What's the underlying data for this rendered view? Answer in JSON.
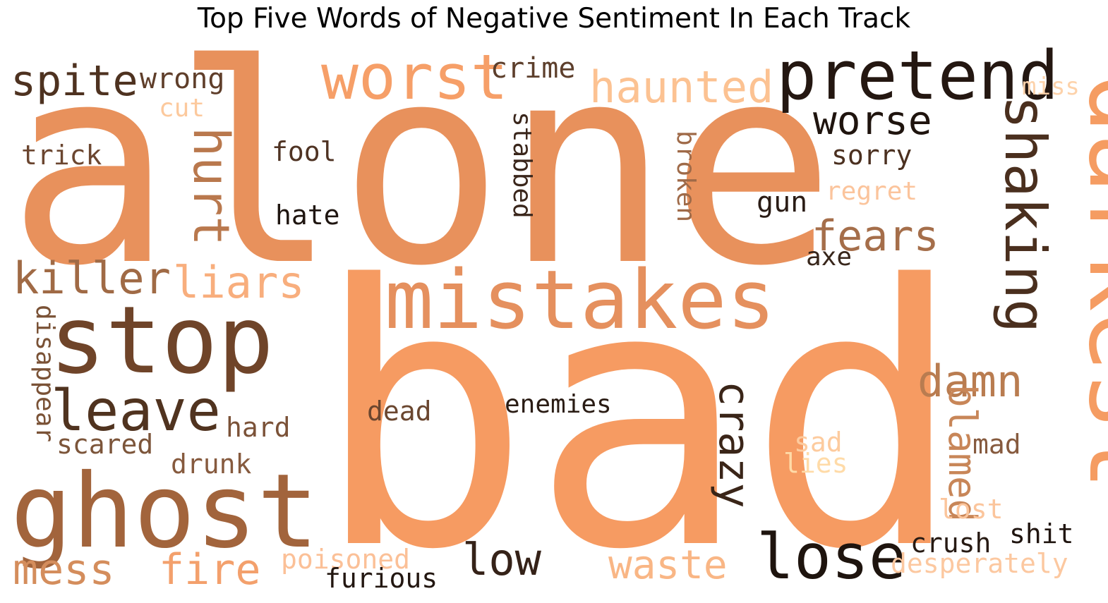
{
  "chart_data": {
    "type": "wordcloud",
    "title": "Top Five Words of Negative Sentiment In Each Track",
    "words": [
      {
        "text": "alone",
        "color": "#E8915C"
      },
      {
        "text": "bad",
        "color": "#F69B62"
      },
      {
        "text": "mistakes",
        "color": "#E5905E"
      },
      {
        "text": "stop",
        "color": "#6F4429"
      },
      {
        "text": "ghost",
        "color": "#A2643C"
      },
      {
        "text": "pretend",
        "color": "#241711"
      },
      {
        "text": "darkest",
        "color": "#F59C62"
      },
      {
        "text": "worst",
        "color": "#F69F68"
      },
      {
        "text": "lose",
        "color": "#1E140E"
      },
      {
        "text": "leave",
        "color": "#50331F"
      },
      {
        "text": "shaking",
        "color": "#4A2F1E"
      },
      {
        "text": "killer",
        "color": "#A06A45"
      },
      {
        "text": "liars",
        "color": "#F8AE7D"
      },
      {
        "text": "hurt",
        "color": "#B9784D"
      },
      {
        "text": "fears",
        "color": "#A56E4A"
      },
      {
        "text": "haunted",
        "color": "#FCC292"
      },
      {
        "text": "spite",
        "color": "#4E3220"
      },
      {
        "text": "worse",
        "color": "#1F140E"
      },
      {
        "text": "damn",
        "color": "#B97C50"
      },
      {
        "text": "crazy",
        "color": "#3A2518"
      },
      {
        "text": "fire",
        "color": "#F3A06C"
      },
      {
        "text": "mess",
        "color": "#D48D5C"
      },
      {
        "text": "waste",
        "color": "#F9B685"
      },
      {
        "text": "low",
        "color": "#352218"
      },
      {
        "text": "blamed",
        "color": "#C88658"
      },
      {
        "text": "desperately",
        "color": "#FCC8A0"
      },
      {
        "text": "wrong",
        "color": "#5F3E2A"
      },
      {
        "text": "crime",
        "color": "#5D3F2C"
      },
      {
        "text": "trick",
        "color": "#6B4630"
      },
      {
        "text": "fool",
        "color": "#4F3323"
      },
      {
        "text": "hate",
        "color": "#1F1510"
      },
      {
        "text": "sorry",
        "color": "#4B3020"
      },
      {
        "text": "gun",
        "color": "#2A1C15"
      },
      {
        "text": "regret",
        "color": "#FBC49C"
      },
      {
        "text": "axe",
        "color": "#38261B"
      },
      {
        "text": "stabbed",
        "color": "#3A261B"
      },
      {
        "text": "broken",
        "color": "#9F6A48"
      },
      {
        "text": "disappear",
        "color": "#7A5236"
      },
      {
        "text": "enemies",
        "color": "#2A1C14"
      },
      {
        "text": "dead",
        "color": "#6A462F"
      },
      {
        "text": "hard",
        "color": "#7B5238"
      },
      {
        "text": "scared",
        "color": "#7C553A"
      },
      {
        "text": "drunk",
        "color": "#865A3E"
      },
      {
        "text": "poisoned",
        "color": "#FBC097"
      },
      {
        "text": "furious",
        "color": "#231711"
      },
      {
        "text": "crush",
        "color": "#271A13"
      },
      {
        "text": "shit",
        "color": "#201510"
      },
      {
        "text": "lost",
        "color": "#FBC59C"
      },
      {
        "text": "mad",
        "color": "#865A3E"
      },
      {
        "text": "sad",
        "color": "#FDCB9E"
      },
      {
        "text": "lies",
        "color": "#FFDBA8"
      },
      {
        "text": "cut",
        "color": "#FCC99D"
      },
      {
        "text": "miss",
        "color": "#FDD2AA"
      }
    ]
  }
}
